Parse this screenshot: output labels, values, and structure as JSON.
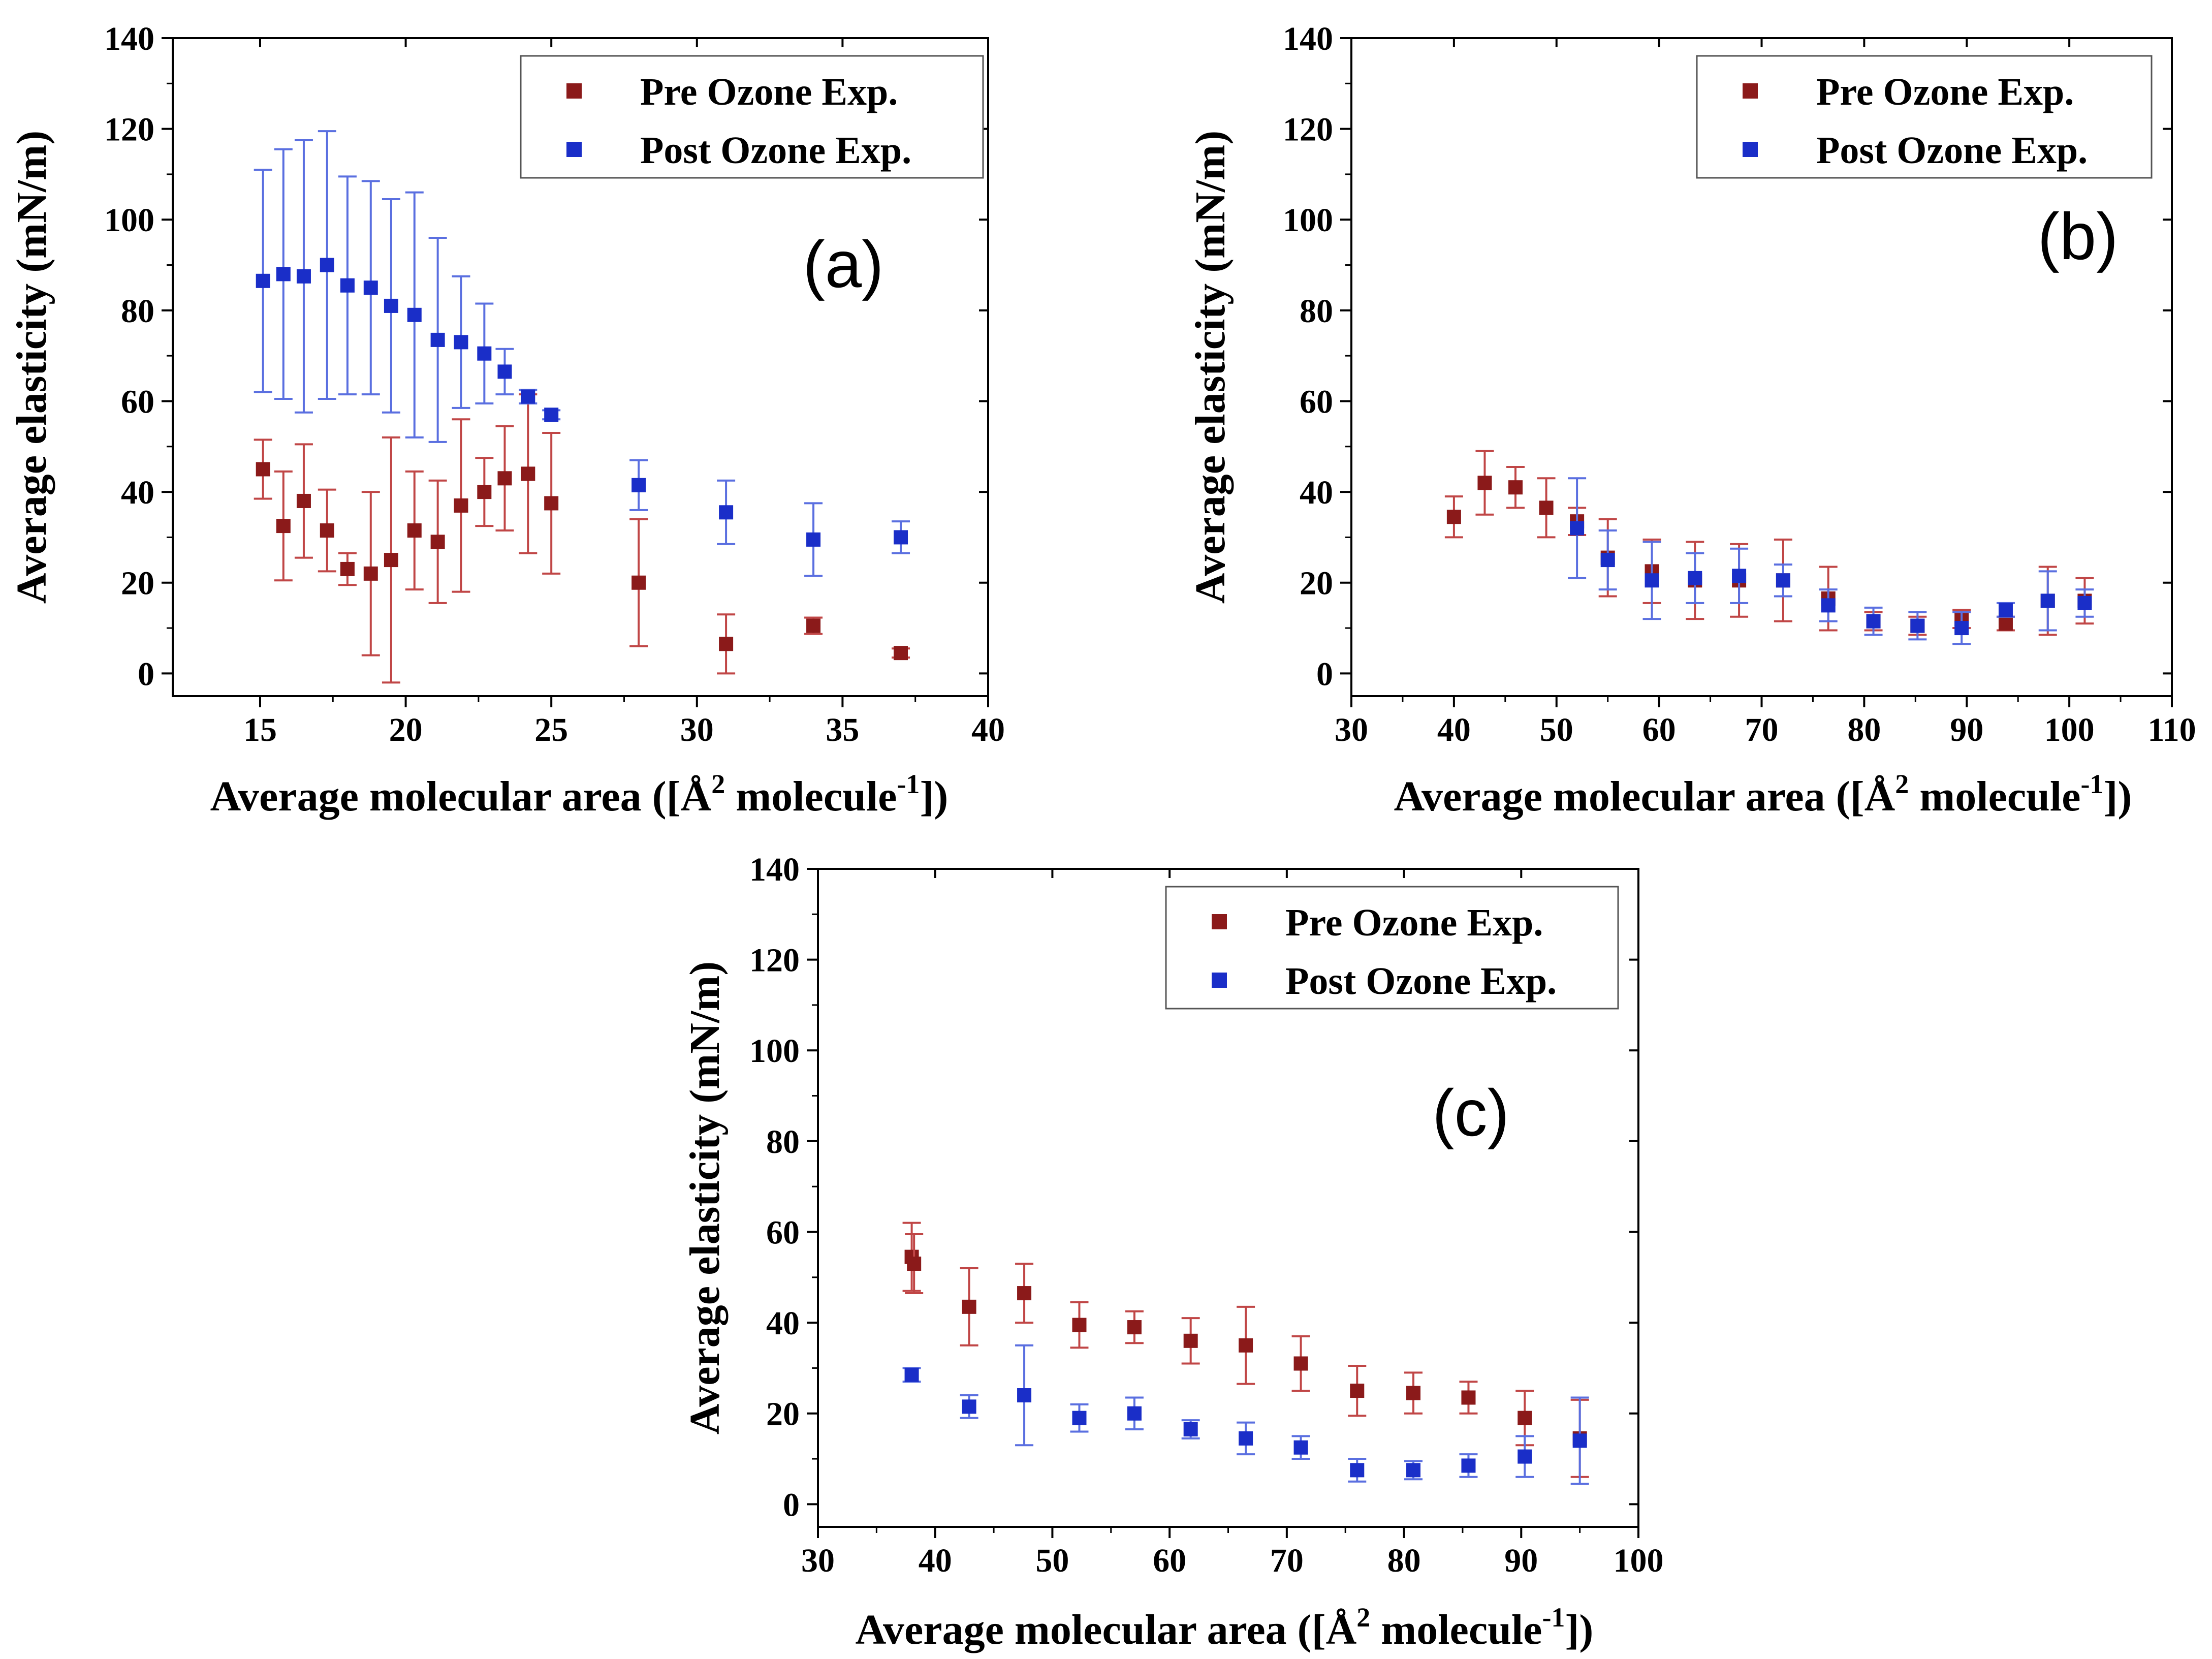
{
  "colors": {
    "pre": "#8B1A1A",
    "post": "#1A2EC8",
    "pre_err": "#C04646",
    "post_err": "#5A6FE0"
  },
  "chart_data": [
    {
      "id": "a",
      "type": "scatter",
      "panel_label": "(a)",
      "xlabel": "Average molecular area ([Å",
      "xlabel_sup2": "2",
      "xlabel_mid": " molecule",
      "xlabel_sup": "-1",
      "xlabel_end": "])",
      "ylabel": "Average elasticity (mN/m)",
      "xlim": [
        12,
        40
      ],
      "ylim": [
        -5,
        140
      ],
      "xticks": [
        15,
        20,
        25,
        30,
        35,
        40
      ],
      "yticks": [
        0,
        20,
        40,
        60,
        80,
        100,
        120,
        140
      ],
      "series": [
        {
          "name": "Pre Ozone  Exp.",
          "color_key": "pre",
          "points": [
            [
              15.1,
              45,
              6.5
            ],
            [
              15.8,
              32.5,
              12
            ],
            [
              16.5,
              38,
              12.5
            ],
            [
              17.3,
              31.5,
              9
            ],
            [
              18.0,
              23,
              3.5
            ],
            [
              18.8,
              22,
              18
            ],
            [
              19.5,
              25,
              27
            ],
            [
              20.3,
              31.5,
              13
            ],
            [
              21.1,
              29,
              13.5
            ],
            [
              21.9,
              37,
              19
            ],
            [
              22.7,
              40,
              7.5
            ],
            [
              23.4,
              43,
              11.5
            ],
            [
              24.2,
              44,
              17.5
            ],
            [
              25.0,
              37.5,
              15.5
            ],
            [
              28.0,
              20,
              14
            ],
            [
              31.0,
              6.5,
              6.5
            ],
            [
              34.0,
              10.5,
              1.8
            ],
            [
              37.0,
              4.5,
              1
            ]
          ]
        },
        {
          "name": "Post Ozone Exp.",
          "color_key": "post",
          "points": [
            [
              15.1,
              86.5,
              24.5
            ],
            [
              15.8,
              88,
              27.5
            ],
            [
              16.5,
              87.5,
              30
            ],
            [
              17.3,
              90,
              29.5
            ],
            [
              18.0,
              85.5,
              24
            ],
            [
              18.8,
              85,
              23.5
            ],
            [
              19.5,
              81,
              23.5
            ],
            [
              20.3,
              79,
              27
            ],
            [
              21.1,
              73.5,
              22.5
            ],
            [
              21.9,
              73,
              14.5
            ],
            [
              22.7,
              70.5,
              11
            ],
            [
              23.4,
              66.5,
              5
            ],
            [
              24.2,
              61,
              1.5
            ],
            [
              25.0,
              57,
              1
            ],
            [
              28.0,
              41.5,
              5.5
            ],
            [
              31.0,
              35.5,
              7
            ],
            [
              34.0,
              29.5,
              8
            ],
            [
              37.0,
              30,
              3.5
            ]
          ]
        }
      ]
    },
    {
      "id": "b",
      "type": "scatter",
      "panel_label": "(b)",
      "xlabel": "Average molecular area ([Å",
      "xlabel_sup2": "2",
      "xlabel_mid": " molecule",
      "xlabel_sup": "-1",
      "xlabel_end": "])",
      "ylabel": "Average elasticity (mN/m)",
      "xlim": [
        30,
        110
      ],
      "ylim": [
        -5,
        140
      ],
      "xticks": [
        30,
        40,
        50,
        60,
        70,
        80,
        90,
        100,
        110
      ],
      "yticks": [
        0,
        20,
        40,
        60,
        80,
        100,
        120,
        140
      ],
      "series": [
        {
          "name": "Pre Ozone  Exp.",
          "color_key": "pre",
          "points": [
            [
              40.0,
              34.5,
              4.5
            ],
            [
              43.0,
              42,
              7
            ],
            [
              46.0,
              41,
              4.5
            ],
            [
              49.0,
              36.5,
              6.5
            ],
            [
              52.0,
              33.5,
              3
            ],
            [
              55.0,
              25.5,
              8.5
            ],
            [
              59.3,
              22.5,
              7
            ],
            [
              63.5,
              20.5,
              8.5
            ],
            [
              67.8,
              20.5,
              8
            ],
            [
              72.1,
              20.5,
              9
            ],
            [
              76.5,
              16.5,
              7
            ],
            [
              80.9,
              11.5,
              2
            ],
            [
              85.2,
              10.5,
              2
            ],
            [
              89.5,
              12,
              2
            ],
            [
              93.8,
              11,
              1.5
            ],
            [
              97.9,
              16,
              7.5
            ],
            [
              101.5,
              16,
              5
            ]
          ]
        },
        {
          "name": "Post Ozone Exp.",
          "color_key": "post",
          "points": [
            [
              52.0,
              32,
              11
            ],
            [
              55.0,
              25,
              6.5
            ],
            [
              59.3,
              20.5,
              8.5
            ],
            [
              63.5,
              21,
              5.5
            ],
            [
              67.8,
              21.5,
              6
            ],
            [
              72.1,
              20.5,
              3.5
            ],
            [
              76.5,
              15,
              3.5
            ],
            [
              80.9,
              11.5,
              3
            ],
            [
              85.2,
              10.5,
              3
            ],
            [
              89.5,
              10,
              3.5
            ],
            [
              93.8,
              14,
              1.5
            ],
            [
              97.9,
              16,
              6.5
            ],
            [
              101.5,
              15.5,
              3
            ]
          ]
        }
      ]
    },
    {
      "id": "c",
      "type": "scatter",
      "panel_label": "(c)",
      "xlabel": "Average molecular area ([Å",
      "xlabel_sup2": "2",
      "xlabel_mid": " molecule",
      "xlabel_sup": "-1",
      "xlabel_end": "])",
      "ylabel": "Average elasticity (mN/m)",
      "xlim": [
        30,
        100
      ],
      "ylim": [
        -5,
        140
      ],
      "xticks": [
        30,
        40,
        50,
        60,
        70,
        80,
        90,
        100
      ],
      "yticks": [
        0,
        20,
        40,
        60,
        80,
        100,
        120,
        140
      ],
      "series": [
        {
          "name": "Pre Ozone  Exp.",
          "color_key": "pre",
          "points": [
            [
              38.0,
              54.5,
              7.5
            ],
            [
              38.2,
              53,
              6.5
            ],
            [
              42.9,
              43.5,
              8.5
            ],
            [
              47.6,
              46.5,
              6.5
            ],
            [
              52.3,
              39.5,
              5
            ],
            [
              57.0,
              39,
              3.5
            ],
            [
              61.8,
              36,
              5
            ],
            [
              66.5,
              35,
              8.5
            ],
            [
              71.2,
              31,
              6
            ],
            [
              76.0,
              25,
              5.5
            ],
            [
              80.8,
              24.5,
              4.5
            ],
            [
              85.5,
              23.5,
              3.5
            ],
            [
              90.3,
              19,
              6
            ],
            [
              95.0,
              14.5,
              8.5
            ]
          ]
        },
        {
          "name": "Post Ozone Exp.",
          "color_key": "post",
          "points": [
            [
              38.0,
              28.5,
              1.5
            ],
            [
              42.9,
              21.5,
              2.5
            ],
            [
              47.6,
              24,
              11
            ],
            [
              52.3,
              19,
              3
            ],
            [
              57.0,
              20,
              3.5
            ],
            [
              61.8,
              16.5,
              2
            ],
            [
              66.5,
              14.5,
              3.5
            ],
            [
              71.2,
              12.5,
              2.5
            ],
            [
              76.0,
              7.5,
              2.5
            ],
            [
              80.8,
              7.5,
              2
            ],
            [
              85.5,
              8.5,
              2.5
            ],
            [
              90.3,
              10.5,
              4.5
            ],
            [
              95.0,
              14,
              9.5
            ]
          ]
        }
      ]
    }
  ]
}
